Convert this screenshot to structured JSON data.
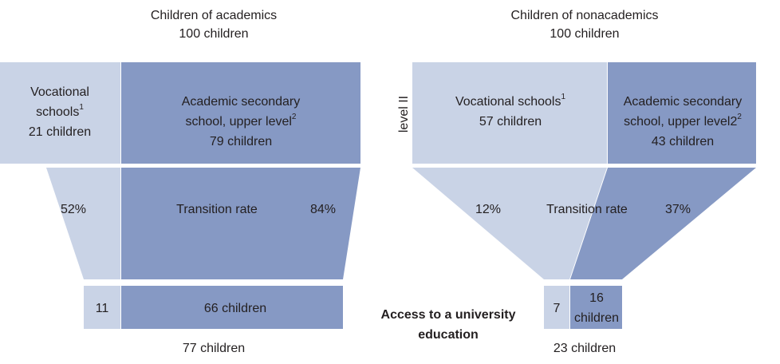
{
  "left": {
    "title": "Children of academics",
    "total": "100 children",
    "top": {
      "vocational": {
        "lines": [
          "Vocational",
          "schools"
        ],
        "sup": "1",
        "count": "21 children"
      },
      "academic": {
        "lines": [
          "Academic secondary",
          "school, upper level"
        ],
        "sup": "2",
        "count": "79 children"
      }
    },
    "rates": {
      "vocational": "52%",
      "label": "Transition rate",
      "academic": "84%"
    },
    "bottom": {
      "vocational": "11",
      "academic": [
        "66 children"
      ]
    },
    "result": "77 children"
  },
  "right": {
    "title": "Children of nonacademics",
    "total": "100 children",
    "top": {
      "vocational": {
        "lines": [
          "Vocational schools"
        ],
        "sup": "1",
        "count": "57 children"
      },
      "academic": {
        "lines": [
          "Academic secondary",
          "school, upper level2"
        ],
        "sup": "2",
        "count": "43 children"
      }
    },
    "rates": {
      "vocational": "12%",
      "label": "Transition rate",
      "academic": "37%"
    },
    "bottom": {
      "vocational": "7",
      "academic": [
        "16",
        "children"
      ]
    },
    "result": "23 children"
  },
  "side_label": "level II",
  "center_label": [
    "Access to a university",
    "education"
  ]
}
